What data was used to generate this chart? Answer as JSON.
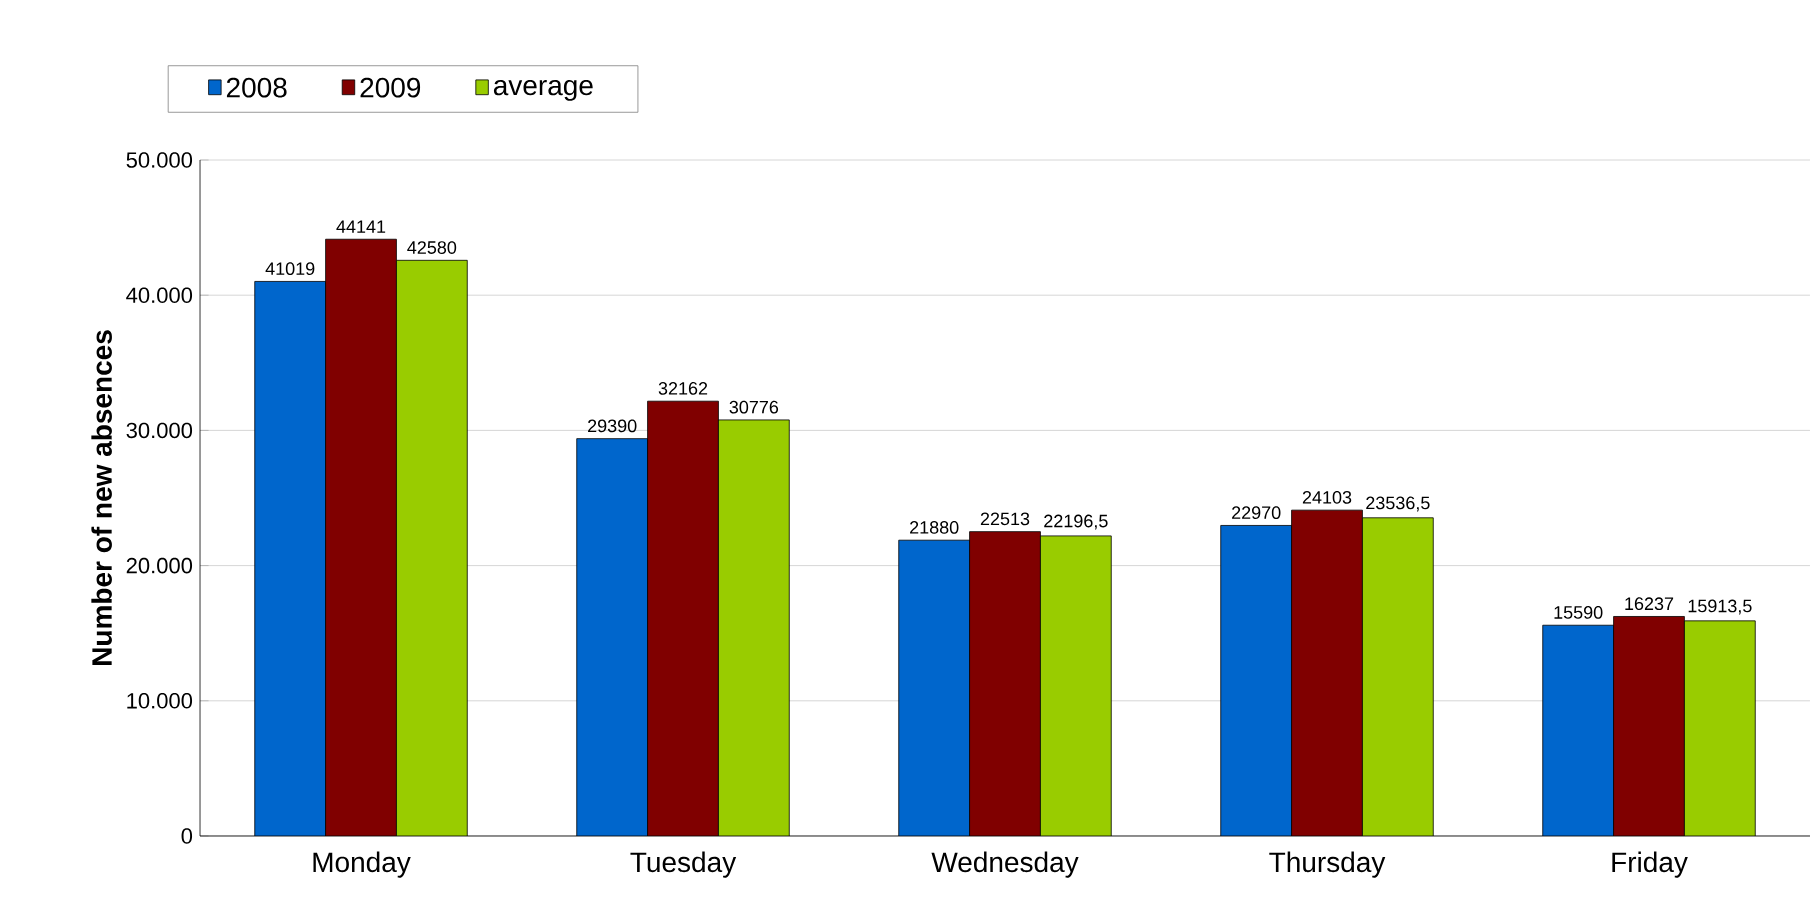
{
  "chart_data": {
    "type": "bar",
    "ylabel": "Number of new absences",
    "categories": [
      "Monday",
      "Tuesday",
      "Wednesday",
      "Thursday",
      "Friday"
    ],
    "series": [
      {
        "name": "2008",
        "color": "#0066cc",
        "values": [
          41019,
          29390,
          21880,
          22970,
          15590
        ],
        "value_labels": [
          "41019",
          "29390",
          "21880",
          "22970",
          "15590"
        ]
      },
      {
        "name": "2009",
        "color": "#800000",
        "values": [
          44141,
          32162,
          22513,
          24103,
          16237
        ],
        "value_labels": [
          "44141",
          "32162",
          "22513",
          "24103",
          "16237"
        ]
      },
      {
        "name": "average",
        "color": "#99cc00",
        "values": [
          42580,
          30776,
          22196.5,
          23536.5,
          15913.5
        ],
        "value_labels": [
          "42580",
          "30776",
          "22196,5",
          "23536,5",
          "15913,5"
        ]
      }
    ],
    "ylim": [
      0,
      50000
    ],
    "yticks": [
      0,
      {
        "value": 10000,
        "label": "10.000"
      },
      {
        "value": 20000,
        "label": "20.000"
      },
      {
        "value": 30000,
        "label": "30.000"
      },
      {
        "value": 40000,
        "label": "40.000"
      },
      {
        "value": 50000,
        "label": "50.000"
      }
    ],
    "grid": "y",
    "legend": "top left"
  }
}
